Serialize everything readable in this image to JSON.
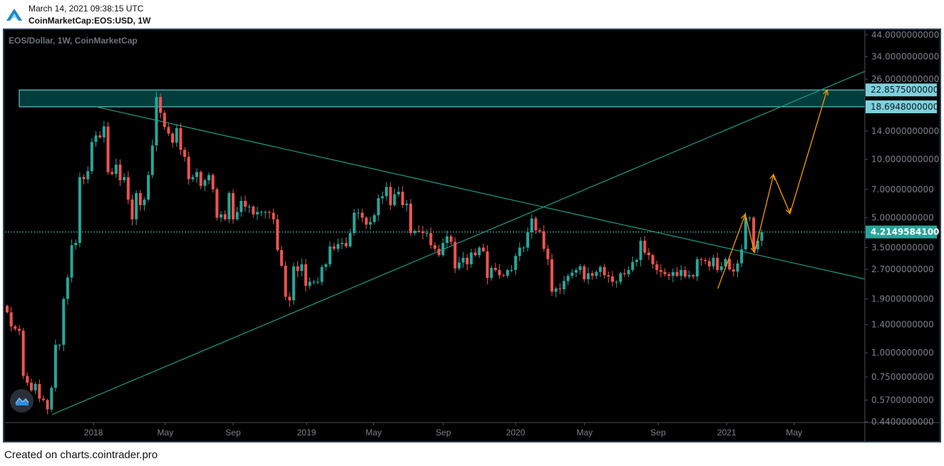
{
  "header": {
    "timestamp": "March 14, 2021 09:38:15 UTC",
    "symbol": "CoinMarketCap:EOS:USD, 1W"
  },
  "footer": "Created on charts.cointrader.pro",
  "colors": {
    "up": "#26a69a",
    "down": "#ef5350",
    "zone_fill": "#013d3d",
    "zone_border": "#6fe3ea",
    "trendline": "#1e9c86",
    "projection": "#f59b00",
    "axis_text": "#7d818a",
    "tag_zone": "#7fd0dc",
    "tag_price": "#26a69a"
  },
  "chart_data": {
    "type": "candlestick",
    "title": "EOS/Dollar, 1W, CoinMarketCap",
    "yscale": "log",
    "ylim": [
      0.44,
      44
    ],
    "first_open": 1.75,
    "closes": [
      1.62,
      1.37,
      1.33,
      1.3,
      0.76,
      0.7,
      0.64,
      0.69,
      0.58,
      0.57,
      0.51,
      0.66,
      1.1,
      1.1,
      1.9,
      2.45,
      3.6,
      3.7,
      8.1,
      7.9,
      8.7,
      12.3,
      13.3,
      13.0,
      14.8,
      8.6,
      8.4,
      9.4,
      7.8,
      8.1,
      6.2,
      4.9,
      6.7,
      5.8,
      6.2,
      8.3,
      11.8,
      21.0,
      17.4,
      14.7,
      13.6,
      12.2,
      14.5,
      11.2,
      10.3,
      7.9,
      8.1,
      8.6,
      7.3,
      7.8,
      8.3,
      7.0,
      5.0,
      5.2,
      4.9,
      6.7,
      4.9,
      5.35,
      6.1,
      5.7,
      5.7,
      5.2,
      5.35,
      5.35,
      5.35,
      5.3,
      4.9,
      3.4,
      2.82,
      1.95,
      1.87,
      2.8,
      2.65,
      2.87,
      2.22,
      2.33,
      2.33,
      2.33,
      2.78,
      2.87,
      3.55,
      3.45,
      3.65,
      3.7,
      3.55,
      4.16,
      5.3,
      5.3,
      5.0,
      4.6,
      4.75,
      5.15,
      6.3,
      6.45,
      7.2,
      5.8,
      6.6,
      6.8,
      5.8,
      5.9,
      4.16,
      4.27,
      4.25,
      4.16,
      4.16,
      3.6,
      3.45,
      3.2,
      3.7,
      4.0,
      3.75,
      2.73,
      2.93,
      3.1,
      2.87,
      3.3,
      3.2,
      3.5,
      3.35,
      2.44,
      2.75,
      2.68,
      2.52,
      2.5,
      2.68,
      2.68,
      3.17,
      3.5,
      3.5,
      4.2,
      4.95,
      4.3,
      4.25,
      3.45,
      3.05,
      2.07,
      2.15,
      2.13,
      2.35,
      2.5,
      2.6,
      2.68,
      2.8,
      2.4,
      2.58,
      2.5,
      2.62,
      2.78,
      2.52,
      2.48,
      2.33,
      2.33,
      2.58,
      2.55,
      2.68,
      2.95,
      3.02,
      3.8,
      3.3,
      3.2,
      2.87,
      2.68,
      2.62,
      2.55,
      2.5,
      2.62,
      2.5,
      2.68,
      2.48,
      2.52,
      2.48,
      3.05,
      3.02,
      2.98,
      2.8,
      3.1,
      2.68,
      2.8,
      3.05,
      2.7,
      2.63,
      2.9,
      3.43,
      5.0,
      5.0,
      3.43,
      3.8,
      4.2
    ],
    "x_ticks": [
      {
        "label": "2018",
        "index": 21.4
      },
      {
        "label": "May",
        "index": 39.2
      },
      {
        "label": "Sep",
        "index": 56
      },
      {
        "label": "2019",
        "index": 74.2
      },
      {
        "label": "May",
        "index": 90.8
      },
      {
        "label": "Sep",
        "index": 108.1
      },
      {
        "label": "2020",
        "index": 126
      },
      {
        "label": "May",
        "index": 143.1
      },
      {
        "label": "Sep",
        "index": 161.3
      },
      {
        "label": "2021",
        "index": 178.3
      },
      {
        "label": "May",
        "index": 195
      }
    ],
    "y_ticks": [
      "44.0000000000",
      "34.0000000000",
      "26.0000000000",
      "14.0000000000",
      "10.0000000000",
      "7.0000000000",
      "5.0000000000",
      "3.5000000000",
      "2.7000000000",
      "1.9000000000",
      "1.4000000000",
      "1.0000000000",
      "0.7500000000",
      "0.5700000000",
      "0.4400000000"
    ],
    "zone": {
      "low": 18.6948,
      "high": 22.8575,
      "low_label": "18.6948000000",
      "high_label": "22.8575000000",
      "start_index": 3
    },
    "current_price": {
      "value": 4.21495841,
      "label": "4.2149584100"
    },
    "trendlines": [
      {
        "name": "descending-resistance",
        "from": [
          22.1,
          18.69
        ],
        "to": [
          212.5,
          2.41
        ]
      },
      {
        "name": "ascending-support",
        "from": [
          11.1,
          0.48
        ],
        "to": [
          212.5,
          28.5
        ]
      }
    ],
    "projection_path": [
      [
        176.1,
        2.15
      ],
      [
        182.9,
        5.2
      ],
      [
        185.2,
        3.3
      ],
      [
        189.9,
        8.35
      ],
      [
        194.0,
        5.25
      ],
      [
        203.2,
        22.9
      ]
    ]
  }
}
